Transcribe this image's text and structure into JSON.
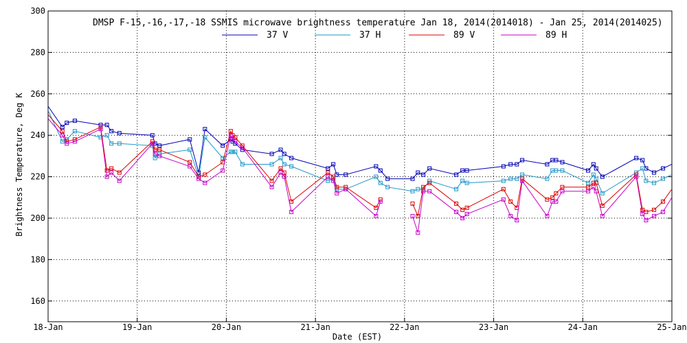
{
  "chart_data": {
    "type": "line",
    "title": "DMSP F-15,-16,-17,-18 SSMIS microwave brightness temperature Jan 18, 2014(2014018) - Jan 25, 2014(2014025)",
    "xlabel": "Date (EST)",
    "ylabel": "Brightness Temperature, Deg K",
    "x_ticks": [
      "18-Jan",
      "19-Jan",
      "20-Jan",
      "21-Jan",
      "22-Jan",
      "23-Jan",
      "24-Jan",
      "25-Jan"
    ],
    "y_ticks": [
      "160",
      "180",
      "200",
      "220",
      "240",
      "260",
      "280",
      "300"
    ],
    "xlim": [
      0,
      7
    ],
    "ylim": [
      150,
      300
    ],
    "x_unit": "days since 18-Jan",
    "grid": true,
    "legend_position": "top-center",
    "series": [
      {
        "name": "37 V",
        "color": "#0000b4",
        "points": [
          [
            0.0,
            254
          ],
          [
            0.16,
            244
          ],
          [
            0.21,
            246
          ],
          [
            0.3,
            247
          ],
          [
            0.59,
            245
          ],
          [
            0.66,
            245
          ],
          [
            0.71,
            242
          ],
          [
            0.8,
            241
          ],
          [
            1.17,
            240
          ],
          [
            1.2,
            236
          ],
          [
            1.25,
            235
          ],
          [
            1.59,
            238
          ],
          [
            1.69,
            222
          ],
          [
            1.76,
            243
          ],
          [
            1.96,
            235
          ],
          [
            2.05,
            238
          ],
          [
            2.07,
            237
          ],
          [
            2.1,
            236
          ],
          [
            2.18,
            233
          ],
          [
            2.51,
            231
          ],
          [
            2.61,
            233
          ],
          [
            2.65,
            231
          ],
          [
            2.73,
            229
          ],
          [
            3.14,
            224
          ],
          [
            3.2,
            226
          ],
          [
            3.24,
            221
          ],
          [
            3.34,
            221
          ],
          [
            3.68,
            225
          ],
          [
            3.73,
            223
          ],
          [
            3.81,
            219
          ],
          [
            4.09,
            219
          ],
          [
            4.15,
            222
          ],
          [
            4.21,
            221
          ],
          [
            4.28,
            224
          ],
          [
            4.58,
            221
          ],
          [
            4.65,
            223
          ],
          [
            4.7,
            223
          ],
          [
            5.11,
            225
          ],
          [
            5.19,
            226
          ],
          [
            5.26,
            226
          ],
          [
            5.32,
            228
          ],
          [
            5.6,
            226
          ],
          [
            5.66,
            228
          ],
          [
            5.7,
            228
          ],
          [
            5.77,
            227
          ],
          [
            6.06,
            223
          ],
          [
            6.12,
            226
          ],
          [
            6.15,
            224
          ],
          [
            6.22,
            220
          ],
          [
            6.6,
            229
          ],
          [
            6.67,
            228
          ],
          [
            6.71,
            224
          ],
          [
            6.8,
            222
          ],
          [
            6.9,
            224
          ],
          [
            7.0,
            226
          ]
        ]
      },
      {
        "name": "37 H",
        "color": "#1e96c8",
        "points": [
          [
            0.0,
            252
          ],
          [
            0.16,
            237
          ],
          [
            0.21,
            238
          ],
          [
            0.3,
            242
          ],
          [
            0.59,
            239
          ],
          [
            0.66,
            240
          ],
          [
            0.71,
            236
          ],
          [
            0.8,
            236
          ],
          [
            1.17,
            235
          ],
          [
            1.2,
            229
          ],
          [
            1.25,
            231
          ],
          [
            1.59,
            233
          ],
          [
            1.69,
            220
          ],
          [
            1.76,
            239
          ],
          [
            1.96,
            229
          ],
          [
            2.05,
            232
          ],
          [
            2.07,
            232
          ],
          [
            2.1,
            232
          ],
          [
            2.18,
            226
          ],
          [
            2.51,
            226
          ],
          [
            2.61,
            229
          ],
          [
            2.65,
            226
          ],
          [
            2.73,
            225
          ],
          [
            3.14,
            218
          ],
          [
            3.2,
            219
          ],
          [
            3.24,
            214
          ],
          [
            3.34,
            214
          ],
          [
            3.68,
            220
          ],
          [
            3.73,
            217
          ],
          [
            3.81,
            215
          ],
          [
            4.09,
            213
          ],
          [
            4.15,
            214
          ],
          [
            4.21,
            214
          ],
          [
            4.28,
            218
          ],
          [
            4.58,
            214
          ],
          [
            4.65,
            218
          ],
          [
            4.7,
            217
          ],
          [
            5.11,
            218
          ],
          [
            5.19,
            219
          ],
          [
            5.26,
            219
          ],
          [
            5.32,
            221
          ],
          [
            5.6,
            219
          ],
          [
            5.66,
            223
          ],
          [
            5.7,
            223
          ],
          [
            5.77,
            223
          ],
          [
            6.06,
            217
          ],
          [
            6.12,
            221
          ],
          [
            6.15,
            219
          ],
          [
            6.22,
            212
          ],
          [
            6.6,
            222
          ],
          [
            6.67,
            224
          ],
          [
            6.71,
            218
          ],
          [
            6.8,
            217
          ],
          [
            6.9,
            219
          ],
          [
            7.0,
            221
          ]
        ]
      },
      {
        "name": "89 V",
        "color": "#dc0000",
        "segments": [
          [
            [
              0.0,
              250
            ],
            [
              0.16,
              242
            ],
            [
              0.21,
              237
            ],
            [
              0.3,
              238
            ],
            [
              0.59,
              244
            ],
            [
              0.66,
              223
            ],
            [
              0.71,
              224
            ],
            [
              0.8,
              222
            ],
            [
              1.17,
              237
            ],
            [
              1.2,
              233
            ],
            [
              1.25,
              233
            ],
            [
              1.59,
              227
            ],
            [
              1.69,
              220
            ],
            [
              1.76,
              221
            ],
            [
              1.96,
              227
            ],
            [
              2.05,
              242
            ],
            [
              2.07,
              240
            ],
            [
              2.1,
              239
            ],
            [
              2.18,
              235
            ],
            [
              2.51,
              218
            ],
            [
              2.61,
              224
            ],
            [
              2.65,
              222
            ],
            [
              2.73,
              208
            ],
            [
              3.14,
              222
            ],
            [
              3.2,
              220
            ],
            [
              3.24,
              215
            ],
            [
              3.34,
              215
            ],
            [
              3.68,
              205
            ],
            [
              3.73,
              209
            ]
          ],
          [
            [
              4.09,
              207
            ],
            [
              4.15,
              201
            ],
            [
              4.21,
              215
            ],
            [
              4.28,
              217
            ],
            [
              4.58,
              207
            ],
            [
              4.65,
              204
            ],
            [
              4.7,
              205
            ],
            [
              5.11,
              214
            ],
            [
              5.19,
              208
            ],
            [
              5.26,
              205
            ],
            [
              5.32,
              219
            ],
            [
              5.6,
              209
            ],
            [
              5.66,
              210
            ],
            [
              5.7,
              212
            ],
            [
              5.77,
              215
            ],
            [
              6.06,
              215
            ],
            [
              6.12,
              217
            ],
            [
              6.15,
              217
            ],
            [
              6.22,
              206
            ],
            [
              6.6,
              221
            ],
            [
              6.67,
              204
            ],
            [
              6.71,
              203
            ],
            [
              6.8,
              204
            ],
            [
              6.9,
              208
            ],
            [
              7.0,
              214
            ]
          ]
        ]
      },
      {
        "name": "89 H",
        "color": "#c800c8",
        "segments": [
          [
            [
              0.0,
              248
            ],
            [
              0.16,
              240
            ],
            [
              0.21,
              236
            ],
            [
              0.3,
              237
            ],
            [
              0.59,
              243
            ],
            [
              0.66,
              220
            ],
            [
              0.71,
              222
            ],
            [
              0.8,
              218
            ],
            [
              1.17,
              236
            ],
            [
              1.2,
              231
            ],
            [
              1.25,
              230
            ],
            [
              1.59,
              225
            ],
            [
              1.69,
              219
            ],
            [
              1.76,
              217
            ],
            [
              1.96,
              223
            ],
            [
              2.05,
              240
            ],
            [
              2.07,
              238
            ],
            [
              2.1,
              237
            ],
            [
              2.18,
              234
            ],
            [
              2.51,
              215
            ],
            [
              2.61,
              222
            ],
            [
              2.65,
              220
            ],
            [
              2.73,
              203
            ],
            [
              3.14,
              220
            ],
            [
              3.2,
              218
            ],
            [
              3.24,
              212
            ],
            [
              3.34,
              214
            ],
            [
              3.68,
              201
            ],
            [
              3.73,
              208
            ]
          ],
          [
            [
              4.09,
              201
            ],
            [
              4.15,
              193
            ],
            [
              4.21,
              213
            ],
            [
              4.28,
              213
            ],
            [
              4.58,
              203
            ],
            [
              4.65,
              200
            ],
            [
              4.7,
              202
            ],
            [
              5.11,
              209
            ],
            [
              5.19,
              201
            ],
            [
              5.26,
              199
            ],
            [
              5.32,
              218
            ],
            [
              5.6,
              201
            ],
            [
              5.66,
              208
            ],
            [
              5.7,
              208
            ],
            [
              5.77,
              213
            ],
            [
              6.06,
              213
            ],
            [
              6.12,
              215
            ],
            [
              6.15,
              213
            ],
            [
              6.22,
              201
            ],
            [
              6.6,
              220
            ],
            [
              6.67,
              202
            ],
            [
              6.71,
              199
            ],
            [
              6.8,
              201
            ],
            [
              6.9,
              203
            ],
            [
              7.0,
              210
            ]
          ]
        ]
      }
    ]
  }
}
